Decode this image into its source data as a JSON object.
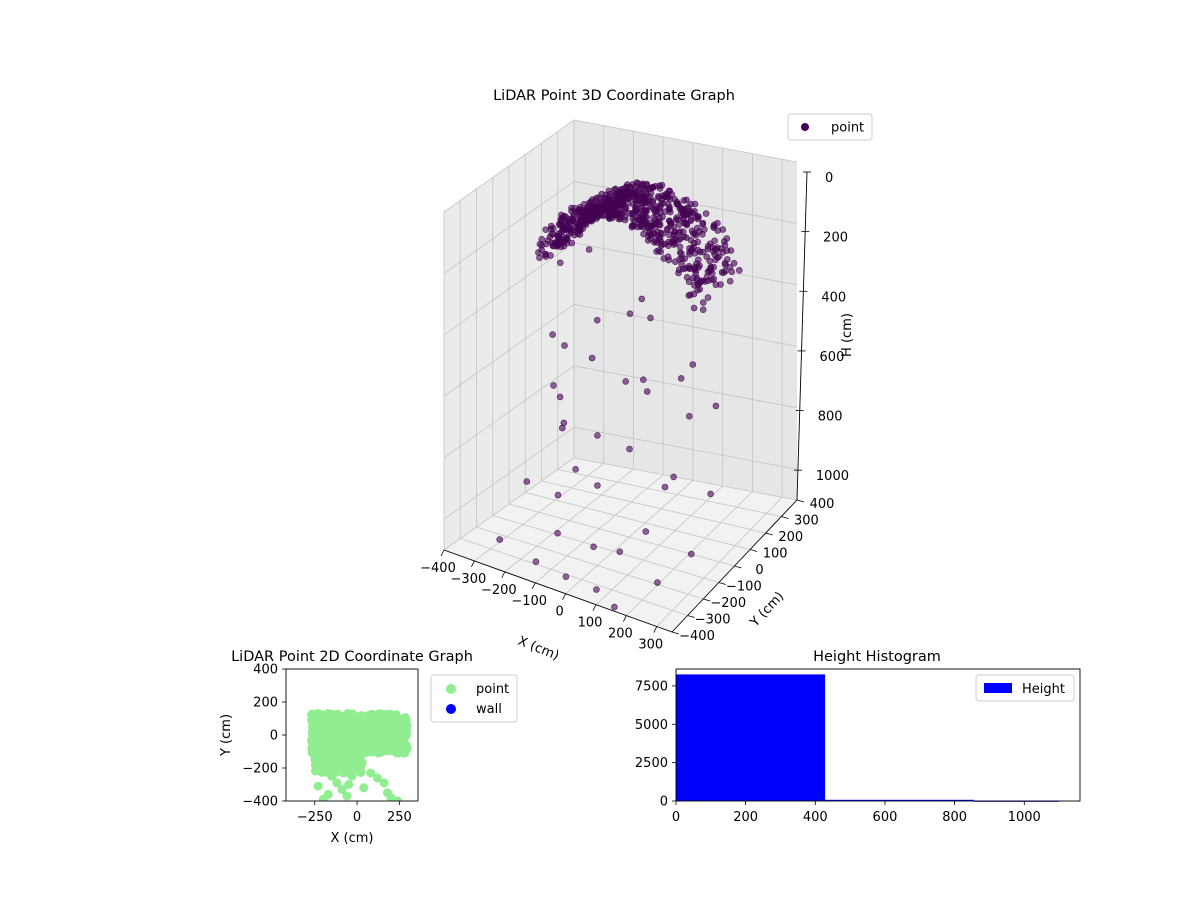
{
  "chart_data": [
    {
      "type": "scatter",
      "projection": "3d",
      "title": "LiDAR Point 3D Coordinate Graph",
      "xlabel": "X (cm)",
      "ylabel": "Y (cm)",
      "zlabel": "H (cm)",
      "xlim": [
        -400,
        350
      ],
      "ylim": [
        -400,
        400
      ],
      "zlim": [
        1100,
        0
      ],
      "z_inverted": true,
      "xticks": [
        -400,
        -300,
        -200,
        -100,
        0,
        100,
        200,
        300
      ],
      "yticks": [
        -400,
        -300,
        -200,
        -100,
        0,
        100,
        200,
        300,
        400
      ],
      "zticks": [
        0,
        200,
        400,
        600,
        800,
        1000
      ],
      "grid": true,
      "legend_position": "top-right",
      "series": [
        {
          "name": "point",
          "color": "#440154",
          "alpha": 0.6,
          "cluster": {
            "x_range": [
              -250,
              300
            ],
            "y_range": [
              -120,
              140
            ],
            "h_range": [
              10,
              260
            ],
            "count": 8200
          },
          "outliers": [
            [
              -310,
              150,
              350
            ],
            [
              -280,
              120,
              600
            ],
            [
              -250,
              60,
              820
            ],
            [
              -200,
              40,
              950
            ],
            [
              -180,
              -80,
              760
            ],
            [
              -150,
              -150,
              620
            ],
            [
              -120,
              -220,
              900
            ],
            [
              -100,
              -260,
              1000
            ],
            [
              -60,
              -120,
              480
            ],
            [
              -40,
              80,
              420
            ],
            [
              -20,
              150,
              700
            ],
            [
              0,
              -200,
              840
            ],
            [
              20,
              -60,
              560
            ],
            [
              40,
              -300,
              980
            ],
            [
              60,
              20,
              380
            ],
            [
              80,
              -150,
              720
            ],
            [
              100,
              -250,
              1000
            ],
            [
              120,
              100,
              600
            ],
            [
              140,
              -40,
              880
            ],
            [
              160,
              -200,
              940
            ],
            [
              180,
              60,
              520
            ],
            [
              200,
              -100,
              800
            ],
            [
              220,
              130,
              680
            ],
            [
              240,
              -280,
              1040
            ],
            [
              260,
              20,
              900
            ],
            [
              -330,
              -20,
              1000
            ],
            [
              -360,
              200,
              780
            ],
            [
              -390,
              250,
              640
            ],
            [
              -230,
              180,
              300
            ],
            [
              -160,
              100,
              480
            ],
            [
              -90,
              -30,
              780
            ],
            [
              10,
              60,
              350
            ],
            [
              110,
              -120,
              500
            ],
            [
              210,
              -20,
              640
            ],
            [
              300,
              -180,
              980
            ],
            [
              -270,
              -300,
              1060
            ],
            [
              -140,
              -320,
              1080
            ],
            [
              70,
              -340,
              1090
            ],
            [
              150,
              -380,
              1100
            ],
            [
              -20,
              -360,
              1070
            ]
          ]
        }
      ]
    },
    {
      "type": "scatter",
      "title": "LiDAR Point 2D Coordinate Graph",
      "xlabel": "X (cm)",
      "ylabel": "Y (cm)",
      "xlim": [
        -420,
        360
      ],
      "ylim": [
        -400,
        400
      ],
      "xticks": [
        -250,
        0,
        250
      ],
      "yticks": [
        -400,
        -200,
        0,
        200,
        400
      ],
      "grid": false,
      "legend_position": "right (outside)",
      "series": [
        {
          "name": "point",
          "color": "#90ee90",
          "cluster": {
            "x_range": [
              -270,
              300
            ],
            "y_range": [
              -110,
              130
            ],
            "count": 900
          },
          "tail": {
            "x_range": [
              -250,
              30
            ],
            "y_range": [
              -230,
              -110
            ],
            "count": 200
          },
          "scattered": [
            [
              -150,
              -250
            ],
            [
              -120,
              -290
            ],
            [
              -90,
              -330
            ],
            [
              -170,
              -360
            ],
            [
              -200,
              -390
            ],
            [
              -60,
              -370
            ],
            [
              40,
              -320
            ],
            [
              120,
              -260
            ],
            [
              160,
              -290
            ],
            [
              200,
              -380
            ],
            [
              240,
              -400
            ],
            [
              -110,
              -200
            ],
            [
              20,
              -220
            ],
            [
              -30,
              -250
            ],
            [
              80,
              -230
            ],
            [
              -230,
              -310
            ],
            [
              180,
              -350
            ],
            [
              -50,
              -300
            ]
          ]
        },
        {
          "name": "wall",
          "color": "#0000ff",
          "points": []
        }
      ]
    },
    {
      "type": "histogram",
      "title": "Height Histogram",
      "xlim": [
        0,
        1160
      ],
      "ylim": [
        0,
        8600
      ],
      "xticks": [
        0,
        200,
        400,
        600,
        800,
        1000
      ],
      "yticks": [
        0,
        2500,
        5000,
        7500
      ],
      "legend_position": "top-right",
      "series": [
        {
          "name": "Height",
          "color": "#0000ff",
          "bins": [
            {
              "start": 0,
              "end": 428,
              "count": 8250
            },
            {
              "start": 428,
              "end": 856,
              "count": 80
            },
            {
              "start": 856,
              "end": 1100,
              "count": 10
            }
          ]
        }
      ]
    }
  ]
}
